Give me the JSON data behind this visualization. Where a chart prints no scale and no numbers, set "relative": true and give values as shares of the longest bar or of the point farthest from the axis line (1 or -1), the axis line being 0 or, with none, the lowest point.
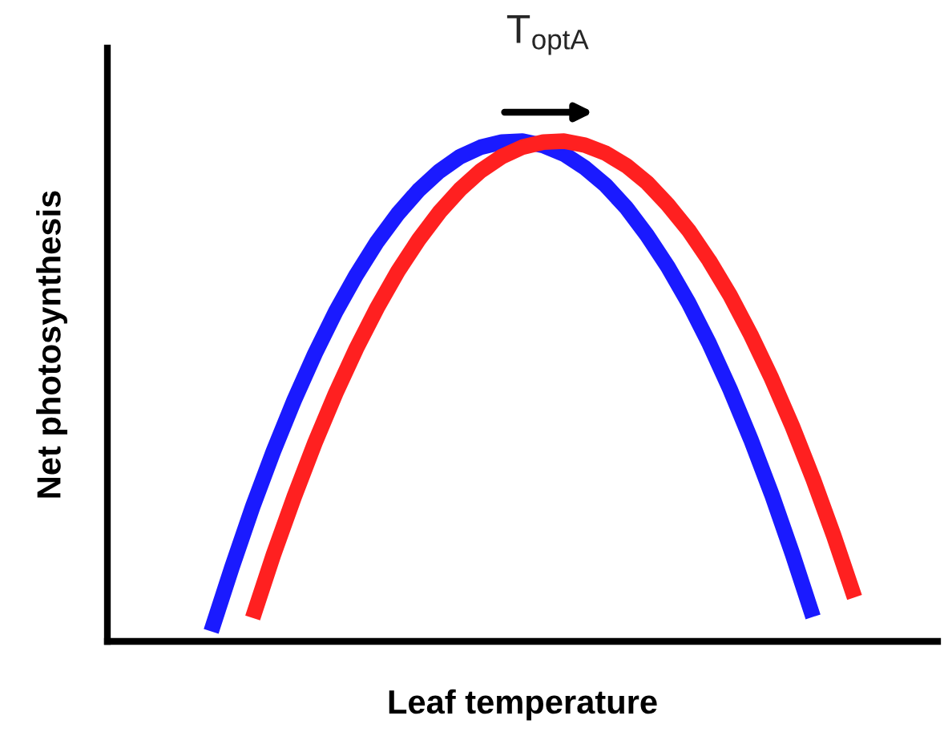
{
  "chart_data": {
    "type": "line",
    "relative": true,
    "xlabel": "Leaf temperature",
    "ylabel": "Net photosynthesis",
    "annotations": [
      "T$_{optA}$"
    ],
    "categories": [
      null,
      null,
      null,
      null,
      null,
      null,
      null,
      null,
      null,
      null,
      null,
      null,
      null,
      null,
      null,
      null,
      null,
      null,
      null,
      null,
      null,
      null,
      null,
      null,
      null,
      null,
      null,
      null,
      null,
      null,
      null,
      null,
      null,
      null,
      null,
      null,
      null,
      null,
      null,
      null,
      null
    ],
    "series": [
      {
        "color": "#1a1aff",
        "values": [
          null,
          null,
          null,
          null,
          null,
          0.02,
          0.148,
          0.269,
          0.38,
          0.482,
          0.575,
          0.659,
          0.733,
          0.799,
          0.855,
          0.902,
          0.94,
          0.969,
          0.988,
          0.998,
          1,
          0.991,
          0.974,
          0.947,
          0.912,
          0.867,
          0.812,
          0.749,
          0.677,
          0.595,
          0.504,
          0.404,
          0.295,
          0.176,
          0.049,
          null,
          null,
          null,
          null,
          null,
          null
        ]
      },
      {
        "color": "#ff2020",
        "values": [
          null,
          null,
          null,
          null,
          null,
          null,
          null,
          0.047,
          0.173,
          0.289,
          0.397,
          0.496,
          0.586,
          0.667,
          0.74,
          0.803,
          0.858,
          0.904,
          0.941,
          0.969,
          0.988,
          0.998,
          1,
          0.992,
          0.976,
          0.951,
          0.917,
          0.873,
          0.822,
          0.761,
          0.692,
          0.613,
          0.526,
          0.43,
          0.325,
          0.211,
          0.088,
          null,
          null,
          null,
          null
        ]
      }
    ],
    "grid": false,
    "legend": false,
    "marker": "none",
    "line_style": "solid"
  }
}
